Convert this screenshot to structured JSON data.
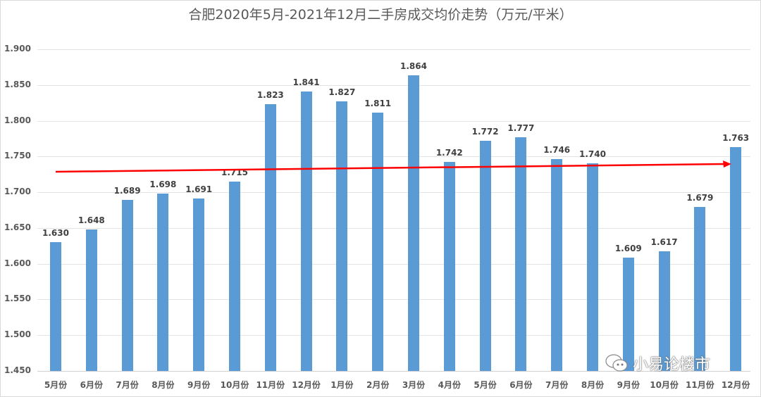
{
  "title": "合肥2020年5月-2021年12月二手房成交均价走势（万元/平米）",
  "watermark": {
    "icon": "wechat-icon",
    "text": "小易论楼市"
  },
  "colors": {
    "bar": "#5b9bd5",
    "trend": "#ff0000",
    "grid": "#e3e3e3",
    "text": "#595959"
  },
  "chart_data": {
    "type": "bar",
    "title": "合肥2020年5月-2021年12月二手房成交均价走势（万元/平米）",
    "xlabel": "",
    "ylabel": "",
    "ylim": [
      1.45,
      1.9
    ],
    "yticks": [
      "1.900",
      "1.850",
      "1.800",
      "1.750",
      "1.700",
      "1.650",
      "1.600",
      "1.550",
      "1.500",
      "1.450"
    ],
    "grid": true,
    "legend": "none",
    "categories": [
      "5月份",
      "6月份",
      "7月份",
      "8月份",
      "9月份",
      "10月份",
      "11月份",
      "12月份",
      "1月份",
      "2月份",
      "3月份",
      "4月份",
      "5月份",
      "6月份",
      "7月份",
      "8月份",
      "9月份",
      "10月份",
      "11月份",
      "12月份"
    ],
    "values": [
      1.63,
      1.648,
      1.689,
      1.698,
      1.691,
      1.715,
      1.823,
      1.841,
      1.827,
      1.811,
      1.864,
      1.742,
      1.772,
      1.777,
      1.746,
      1.74,
      1.609,
      1.617,
      1.679,
      1.763
    ],
    "labels": [
      "1.630",
      "1.648",
      "1.689",
      "1.698",
      "1.691",
      "1.715",
      "1.823",
      "1.841",
      "1.827",
      "1.811",
      "1.864",
      "1.742",
      "1.772",
      "1.777",
      "1.746",
      "1.740",
      "1.609",
      "1.617",
      "1.679",
      "1.763"
    ],
    "annotations": [
      {
        "type": "trend-arrow",
        "color": "#ff0000",
        "from_value": 1.729,
        "to_value": 1.74,
        "direction": "up-right"
      }
    ]
  }
}
